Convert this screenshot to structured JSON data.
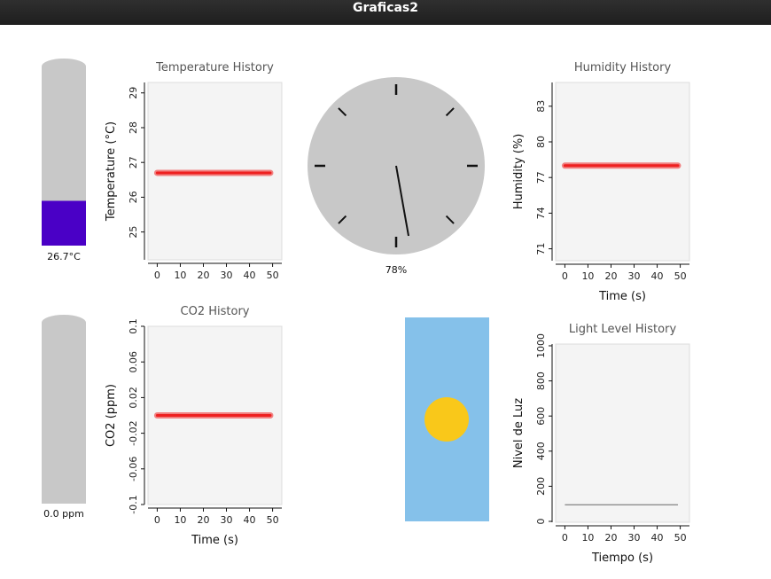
{
  "window": {
    "title": "Graficas2"
  },
  "thermometer": {
    "label": "26.7°C",
    "value": 26.7,
    "fill_fraction": 0.25,
    "fill_color": "#4a00c6"
  },
  "co2_meter": {
    "label": "0.0 ppm",
    "value": 0.0,
    "fill_fraction": 0.0
  },
  "humidity_gauge": {
    "label": "78%",
    "value": 78
  },
  "light_widget": {
    "background_color": "#85c1ea",
    "sun_color": "#f9c81a"
  },
  "colors": {
    "track": "#c8c8c8",
    "series": "#ee2020",
    "plot_bg": "#f4f4f4",
    "light_line": "#666666"
  },
  "chart_data": [
    {
      "type": "line",
      "title": "Temperature History",
      "xlabel": "",
      "ylabel": "Temperature (°C)",
      "xlim": [
        -4,
        54
      ],
      "ylim": [
        24.2,
        29.3
      ],
      "xticks": [
        "0",
        "10",
        "20",
        "30",
        "40",
        "50"
      ],
      "xtick_values": [
        0,
        10,
        20,
        30,
        40,
        50
      ],
      "yticks": [
        "25",
        "26",
        "27",
        "28",
        "29"
      ],
      "ytick_values": [
        25,
        26,
        27,
        28,
        29
      ],
      "grid": false,
      "series": [
        {
          "x": [
            0,
            49
          ],
          "y": [
            26.7,
            26.7
          ]
        }
      ]
    },
    {
      "type": "line",
      "title": "Humidity History",
      "xlabel": "Time (s)",
      "ylabel": "Humidity (%)",
      "xlim": [
        -4,
        54
      ],
      "ylim": [
        70,
        85
      ],
      "xticks": [
        "0",
        "10",
        "20",
        "30",
        "40",
        "50"
      ],
      "xtick_values": [
        0,
        10,
        20,
        30,
        40,
        50
      ],
      "yticks": [
        "71",
        "74",
        "77",
        "80",
        "83"
      ],
      "ytick_values": [
        71,
        74,
        77,
        80,
        83
      ],
      "grid": false,
      "series": [
        {
          "x": [
            0,
            49
          ],
          "y": [
            78,
            78
          ]
        }
      ]
    },
    {
      "type": "line",
      "title": "CO2 History",
      "xlabel": "Time (s)",
      "ylabel": "CO2 (ppm)",
      "xlim": [
        -4,
        54
      ],
      "ylim": [
        -0.1,
        0.1
      ],
      "xticks": [
        "0",
        "10",
        "20",
        "30",
        "40",
        "50"
      ],
      "xtick_values": [
        0,
        10,
        20,
        30,
        40,
        50
      ],
      "yticks": [
        "-0.1",
        "-0.06",
        "-0.02",
        "0.02",
        "0.06",
        "0.1"
      ],
      "ytick_values": [
        -0.1,
        -0.06,
        -0.02,
        0.02,
        0.06,
        0.1
      ],
      "grid": false,
      "series": [
        {
          "x": [
            0,
            49
          ],
          "y": [
            0.0,
            0.0
          ]
        }
      ]
    },
    {
      "type": "line",
      "title": "Light Level History",
      "xlabel": "Tiempo (s)",
      "ylabel": "Nivel de Luz",
      "xlim": [
        -4,
        54
      ],
      "ylim": [
        -5,
        1010
      ],
      "xticks": [
        "0",
        "10",
        "20",
        "30",
        "40",
        "50"
      ],
      "xtick_values": [
        0,
        10,
        20,
        30,
        40,
        50
      ],
      "yticks": [
        "0",
        "200",
        "400",
        "600",
        "800",
        "1000"
      ],
      "ytick_values": [
        0,
        200,
        400,
        600,
        800,
        1000
      ],
      "grid": false,
      "series": [
        {
          "x": [
            0,
            49
          ],
          "y": [
            95,
            95
          ]
        }
      ]
    }
  ]
}
